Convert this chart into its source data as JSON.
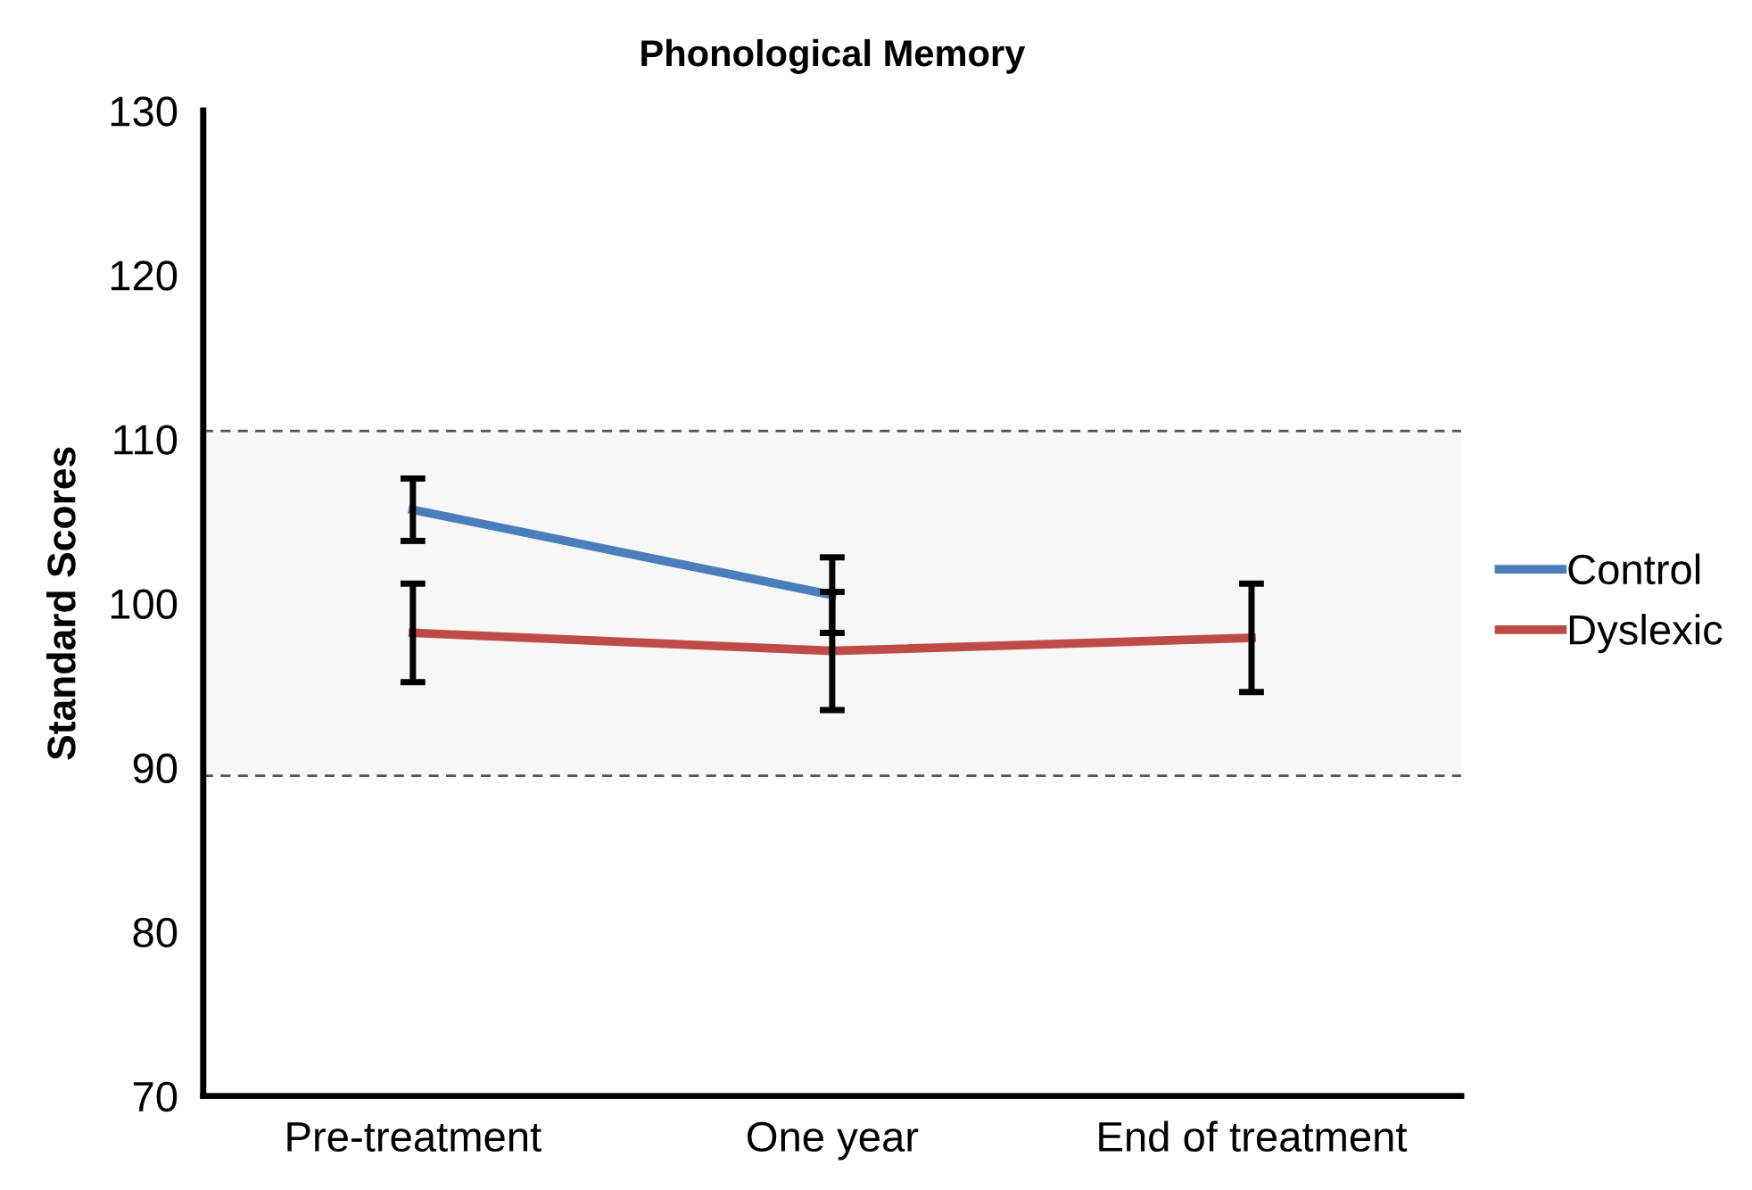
{
  "chart_data": {
    "type": "line",
    "title": "Phonological Memory",
    "ylabel": "Standard Scores",
    "categories": [
      "Pre-treatment",
      "One year",
      "End of treatment"
    ],
    "series": [
      {
        "name": "Control",
        "color": "#4a7ebb",
        "values": [
          105.7,
          100.5,
          null
        ],
        "errors": [
          1.9,
          2.3,
          null
        ]
      },
      {
        "name": "Dyslexic",
        "color": "#be4b48",
        "values": [
          98.2,
          97.1,
          97.9
        ],
        "errors": [
          3.0,
          3.6,
          3.3
        ]
      }
    ],
    "ylim": [
      70,
      130
    ],
    "yticks": [
      70,
      80,
      90,
      100,
      110,
      120,
      130
    ],
    "bands": [
      {
        "axis": "y",
        "from": 89.5,
        "to": 110.5,
        "color": "#f7f7f7"
      }
    ],
    "ref_lines": [
      {
        "axis": "y",
        "value": 110.5,
        "color": "#555555",
        "line_style": "dashed"
      },
      {
        "axis": "y",
        "value": 89.5,
        "color": "#555555",
        "line_style": "dashed"
      }
    ],
    "grid": false,
    "legend": "right",
    "marker": "none",
    "line_style": "solid"
  }
}
